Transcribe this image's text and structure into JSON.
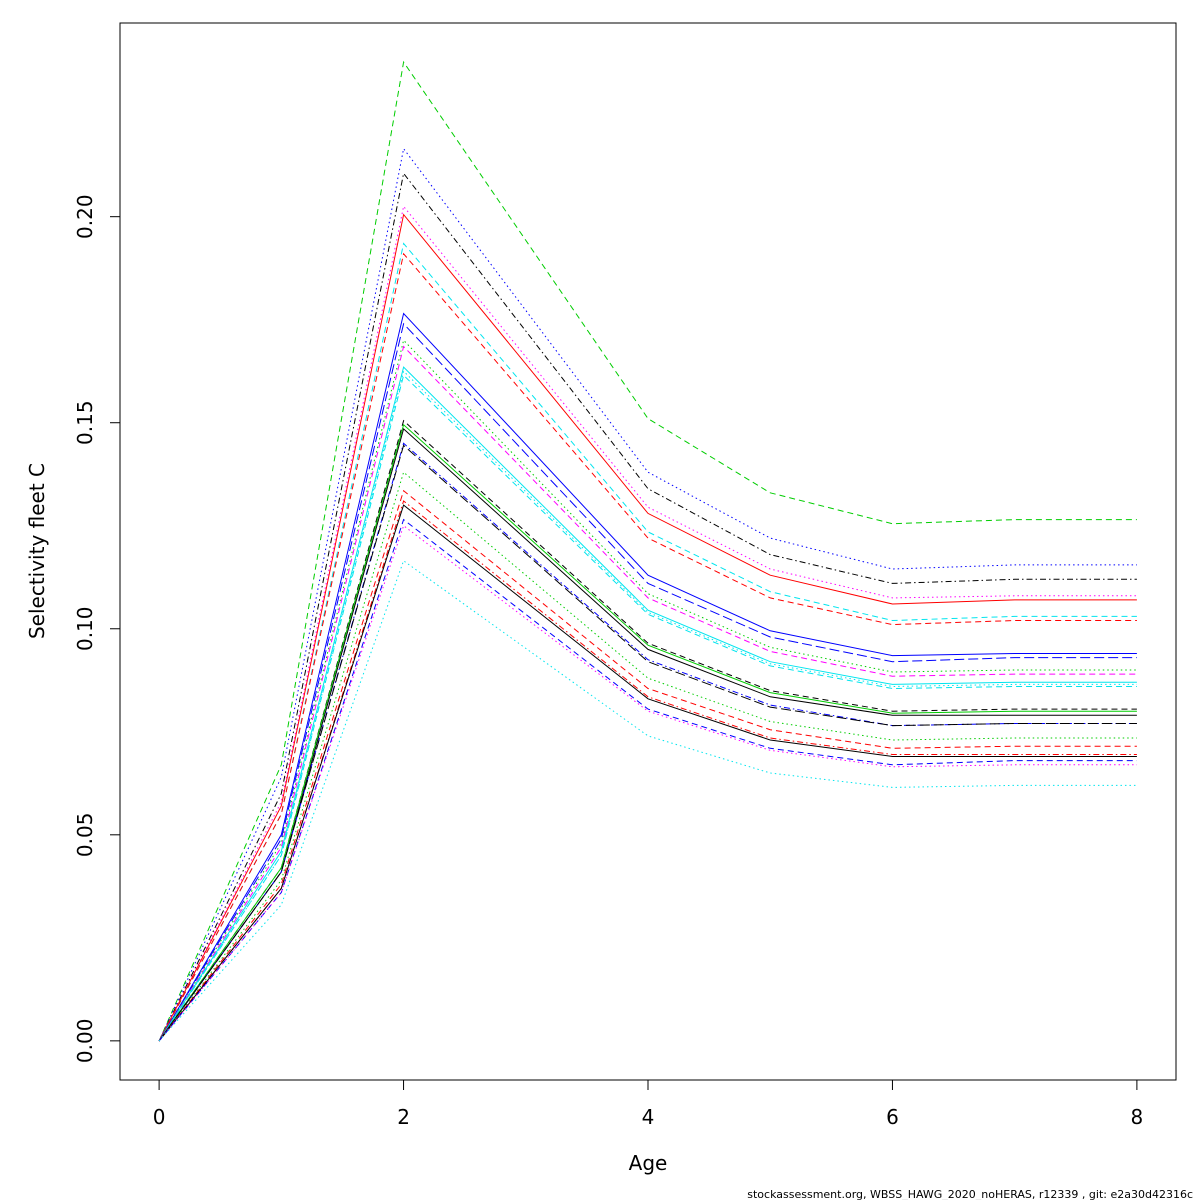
{
  "chart_data": {
    "type": "line",
    "title": "",
    "xlabel": "Age",
    "ylabel": "Selectivity fleet C",
    "xlim": [
      -0.32,
      8.32
    ],
    "ylim": [
      -0.0095,
      0.247
    ],
    "x": [
      0,
      1,
      2,
      4,
      5,
      6,
      7,
      8
    ],
    "x_ticks": [
      "0",
      "2",
      "4",
      "6",
      "8"
    ],
    "y_ticks": [
      "0.00",
      "0.05",
      "0.10",
      "0.15",
      "0.20"
    ],
    "grid": false,
    "legend": "none",
    "series": [
      {
        "color": "#00cd00",
        "dash": "dashed",
        "values": [
          0,
          0.067,
          0.2375,
          0.151,
          0.133,
          0.1255,
          0.1265,
          0.1265
        ]
      },
      {
        "color": "#0000ff",
        "dash": "dotted",
        "values": [
          0,
          0.064,
          0.2165,
          0.138,
          0.122,
          0.1145,
          0.1155,
          0.1155
        ]
      },
      {
        "color": "#000000",
        "dash": "dotdash",
        "values": [
          0,
          0.06,
          0.2105,
          0.134,
          0.118,
          0.111,
          0.112,
          0.112
        ]
      },
      {
        "color": "#ff00ff",
        "dash": "dotted",
        "values": [
          0,
          0.058,
          0.2025,
          0.1295,
          0.1145,
          0.1075,
          0.108,
          0.108
        ]
      },
      {
        "color": "#ff0000",
        "dash": "solid",
        "values": [
          0,
          0.057,
          0.2005,
          0.128,
          0.113,
          0.106,
          0.107,
          0.107
        ]
      },
      {
        "color": "#00e5ee",
        "dash": "dashed",
        "values": [
          0,
          0.055,
          0.1935,
          0.1235,
          0.109,
          0.102,
          0.103,
          0.103
        ]
      },
      {
        "color": "#ff0000",
        "dash": "dashed",
        "values": [
          0,
          0.055,
          0.191,
          0.122,
          0.1075,
          0.101,
          0.102,
          0.102
        ]
      },
      {
        "color": "#0000ff",
        "dash": "solid",
        "values": [
          0,
          0.05,
          0.1765,
          0.113,
          0.0995,
          0.0935,
          0.094,
          0.094
        ]
      },
      {
        "color": "#0000ff",
        "dash": "longdash",
        "values": [
          0,
          0.049,
          0.174,
          0.111,
          0.098,
          0.092,
          0.093,
          0.093
        ]
      },
      {
        "color": "#00cd00",
        "dash": "dotted",
        "values": [
          0,
          0.048,
          0.17,
          0.1085,
          0.0955,
          0.0895,
          0.09,
          0.09
        ]
      },
      {
        "color": "#ff00ff",
        "dash": "dashed",
        "values": [
          0,
          0.047,
          0.1685,
          0.1075,
          0.0945,
          0.0885,
          0.089,
          0.089
        ]
      },
      {
        "color": "#00e5ee",
        "dash": "solid",
        "values": [
          0,
          0.046,
          0.1635,
          0.1045,
          0.092,
          0.0865,
          0.087,
          0.087
        ]
      },
      {
        "color": "#00e5ee",
        "dash": "dotted",
        "values": [
          0,
          0.045,
          0.1625,
          0.104,
          0.0915,
          0.086,
          0.0865,
          0.0865
        ]
      },
      {
        "color": "#00e5ee",
        "dash": "dashed",
        "values": [
          0,
          0.045,
          0.1615,
          0.1035,
          0.091,
          0.0855,
          0.086,
          0.086
        ]
      },
      {
        "color": "#000000",
        "dash": "dashed",
        "values": [
          0,
          0.042,
          0.1505,
          0.0965,
          0.085,
          0.08,
          0.0805,
          0.0805
        ]
      },
      {
        "color": "#00cd00",
        "dash": "solid",
        "values": [
          0,
          0.042,
          0.1495,
          0.096,
          0.0845,
          0.0795,
          0.08,
          0.08
        ]
      },
      {
        "color": "#000000",
        "dash": "solid",
        "values": [
          0,
          0.041,
          0.1485,
          0.095,
          0.0835,
          0.079,
          0.079,
          0.079
        ]
      },
      {
        "color": "#0000ff",
        "dash": "dotdash",
        "values": [
          0,
          0.041,
          0.145,
          0.0925,
          0.0815,
          0.0765,
          0.077,
          0.077
        ]
      },
      {
        "color": "#000000",
        "dash": "longdash",
        "values": [
          0,
          0.041,
          0.1445,
          0.092,
          0.081,
          0.0765,
          0.077,
          0.077
        ]
      },
      {
        "color": "#00cd00",
        "dash": "dotted",
        "values": [
          0,
          0.039,
          0.138,
          0.088,
          0.0775,
          0.073,
          0.0735,
          0.0735
        ]
      },
      {
        "color": "#ff0000",
        "dash": "dashed",
        "values": [
          0,
          0.038,
          0.1335,
          0.0855,
          0.0755,
          0.071,
          0.0715,
          0.0715
        ]
      },
      {
        "color": "#ff0000",
        "dash": "dotdash",
        "values": [
          0,
          0.037,
          0.131,
          0.0835,
          0.0735,
          0.0695,
          0.0695,
          0.0695
        ]
      },
      {
        "color": "#000000",
        "dash": "solid",
        "values": [
          0,
          0.037,
          0.13,
          0.083,
          0.073,
          0.069,
          0.069,
          0.069
        ]
      },
      {
        "color": "#0000ff",
        "dash": "dashed",
        "values": [
          0,
          0.036,
          0.1265,
          0.0805,
          0.071,
          0.067,
          0.068,
          0.068
        ]
      },
      {
        "color": "#ff00ff",
        "dash": "dotted",
        "values": [
          0,
          0.036,
          0.125,
          0.08,
          0.0705,
          0.0665,
          0.067,
          0.067
        ]
      },
      {
        "color": "#00e5ee",
        "dash": "dotted",
        "values": [
          0,
          0.033,
          0.1165,
          0.074,
          0.065,
          0.0615,
          0.062,
          0.062
        ]
      }
    ]
  },
  "footer": {
    "text": "stockassessment.org, WBSS_HAWG_2020_noHERAS, r12339 , git: e2a30d42316c"
  }
}
